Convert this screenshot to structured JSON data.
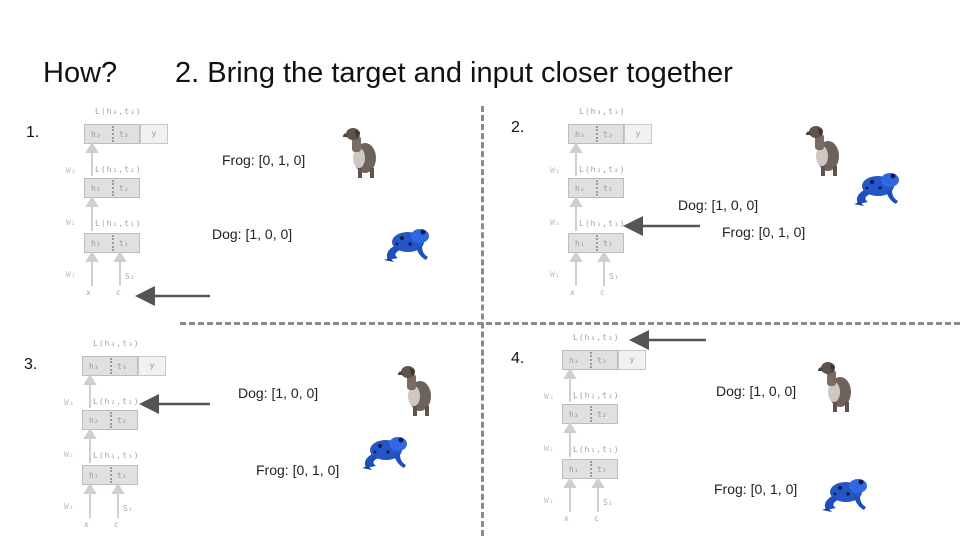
{
  "title": {
    "how": "How?",
    "main": "2. Bring the target and input closer together"
  },
  "quadrants": [
    {
      "num": "1.",
      "dog_label": "Dog: [1, 0, 0]",
      "frog_label": "Frog: [0, 1, 0]"
    },
    {
      "num": "2.",
      "dog_label": "Dog: [1, 0, 0]",
      "frog_label": "Frog: [0, 1, 0]"
    },
    {
      "num": "3.",
      "dog_label": "Dog: [1, 0, 0]",
      "frog_label": "Frog: [0, 1, 0]"
    },
    {
      "num": "4.",
      "dog_label": "Dog: [1, 0, 0]",
      "frog_label": "Frog: [0, 1, 0]"
    }
  ],
  "network": {
    "loss_top": "L(h₃,t₃)",
    "loss_mid": "L(h₂,t₂)",
    "loss_bot": "L(h₁,t₁)",
    "h3": "h₃",
    "t3": "t₃",
    "h2": "h₂",
    "t2": "t₂",
    "h1": "h₁",
    "t1": "t₁",
    "y": "y",
    "w3": "W₃",
    "w2": "W₂",
    "w1": "W₁",
    "s1": "S₁",
    "x": "x",
    "c": "c"
  },
  "colors": {
    "arrow": "#555555",
    "divider": "#8a8a8a",
    "frog": "#2456c8",
    "dog": "#6f625a"
  }
}
